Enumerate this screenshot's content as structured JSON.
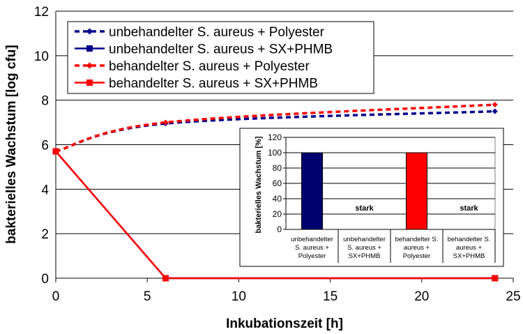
{
  "chart_data": [
    {
      "type": "line",
      "title": "",
      "xlabel": "Inkubationszeit [h]",
      "ylabel": "bakterielles Wachstum [log cfu]",
      "xlim": [
        0,
        25
      ],
      "ylim": [
        0,
        12
      ],
      "xticks": [
        0,
        5,
        10,
        15,
        20,
        25
      ],
      "yticks": [
        0,
        2,
        4,
        6,
        8,
        10,
        12
      ],
      "grid": "horizontal",
      "legend": "top-left",
      "series": [
        {
          "name": "unbehandelter S. aureus + Polyester",
          "color": "#00008B",
          "style": "dashed",
          "marker": "diamond",
          "smooth": true,
          "points": [
            [
              0,
              5.7
            ],
            [
              6,
              6.95
            ],
            [
              24,
              7.5
            ]
          ]
        },
        {
          "name": "unbehandelter S. aureus + SX+PHMB",
          "color": "#00008B",
          "style": "solid",
          "marker": "square",
          "smooth": false,
          "points": [
            [
              0,
              5.7
            ],
            [
              6,
              0
            ],
            [
              24,
              0
            ]
          ]
        },
        {
          "name": "behandelter S. aureus + Polyester",
          "color": "#FF0000",
          "style": "dashed",
          "marker": "diamond",
          "smooth": true,
          "points": [
            [
              0,
              5.7
            ],
            [
              6,
              7.0
            ],
            [
              24,
              7.8
            ]
          ]
        },
        {
          "name": "behandelter S. aureus + SX+PHMB",
          "color": "#FF0000",
          "style": "solid",
          "marker": "square",
          "smooth": false,
          "points": [
            [
              0,
              5.7
            ],
            [
              6,
              0
            ],
            [
              24,
              0
            ]
          ]
        }
      ]
    },
    {
      "type": "bar",
      "title": "",
      "ylabel": "bakterielles Wachstum [%]",
      "ylim": [
        0,
        120
      ],
      "yticks": [
        0,
        20,
        40,
        60,
        80,
        100,
        120
      ],
      "grid": "horizontal",
      "categories": [
        [
          "unbehandelter",
          "S. aureus +",
          "Polyester"
        ],
        [
          "unbehandelter",
          "S. aureus +",
          "SX+PHMB"
        ],
        [
          "behandelter S.",
          "aureus +",
          "Polyester"
        ],
        [
          "behandelter S.",
          "aureus +",
          "SX+PHMB"
        ]
      ],
      "values": [
        100,
        0,
        100,
        0
      ],
      "colors": [
        "#00006E",
        "#00006E",
        "#FF0000",
        "#FF0000"
      ],
      "annotations": [
        "",
        "stark",
        "",
        "stark"
      ]
    }
  ]
}
